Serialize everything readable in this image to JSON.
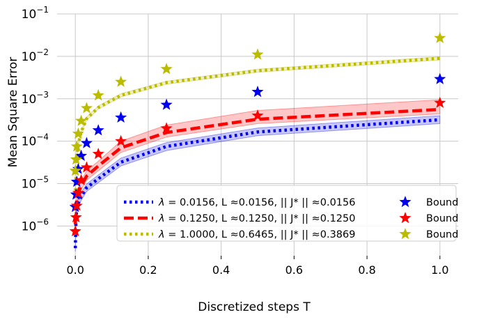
{
  "chart_data": {
    "type": "line",
    "yscale": "log",
    "xlabel": "Discretized steps T",
    "ylabel": "Mean Square Error",
    "xlim": [
      -0.05,
      1.05
    ],
    "ylim_exp": [
      -6.7,
      -1
    ],
    "x_ticks": [
      0.0,
      0.2,
      0.4,
      0.6,
      0.8,
      1.0
    ],
    "x_tick_labels": [
      "0.0",
      "0.2",
      "0.4",
      "0.6",
      "0.8",
      "1.0"
    ],
    "y_ticks_exp": [
      -6,
      -5,
      -4,
      -3,
      -2,
      -1
    ],
    "y_tick_base": "10",
    "y_tick_exponents": [
      "−6",
      "−5",
      "−4",
      "−3",
      "−2",
      "−1"
    ],
    "grid": true,
    "legend_position": "lower-right",
    "x": [
      0.0,
      0.002,
      0.004,
      0.008,
      0.016,
      0.031,
      0.063,
      0.125,
      0.25,
      0.5,
      1.0
    ],
    "series": [
      {
        "name": "λ = 0.0156",
        "legend_lambda": "λ",
        "legend_text": " =  0.0156, L ≈0.0156, || J* || ≈0.0156",
        "color": "#0000ee",
        "dash": "dotted",
        "curve": [
          3e-07,
          1.6e-06,
          2.5e-06,
          3.5e-06,
          5e-06,
          8e-06,
          1.3e-05,
          3.2e-05,
          7.5e-05,
          0.000165,
          0.00032
        ],
        "band_low": [
          2.5e-07,
          1.3e-06,
          2e-06,
          2.8e-06,
          4e-06,
          6.5e-06,
          1.05e-05,
          2.6e-05,
          6e-05,
          0.000135,
          0.00026
        ],
        "band_high": [
          3.6e-07,
          1.95e-06,
          3e-06,
          4.3e-06,
          6.1e-06,
          9.8e-06,
          1.6e-05,
          4e-05,
          9.3e-05,
          0.000205,
          0.0004
        ],
        "bound_label": "Bound",
        "bound": [
          2.8e-06,
          5.5e-06,
          1.1e-05,
          2.2e-05,
          4.5e-05,
          9e-05,
          0.00018,
          0.00036,
          0.00072,
          0.00145,
          0.0029
        ]
      },
      {
        "name": "λ = 0.1250",
        "legend_lambda": "λ",
        "legend_text": " =  0.1250, L ≈0.1250, || J* || ≈0.1250",
        "color": "#ff0000",
        "dash": "dashed",
        "curve": [
          1.1e-06,
          2.8e-06,
          4e-06,
          6e-06,
          9e-06,
          1.5e-05,
          2.6e-05,
          7e-05,
          0.00016,
          0.00033,
          0.00056
        ],
        "band_low": [
          9e-07,
          2.2e-06,
          3.2e-06,
          4.8e-06,
          7.2e-06,
          1.2e-05,
          2e-05,
          5.4e-05,
          0.000125,
          0.00026,
          0.00044
        ],
        "band_high": [
          1.4e-06,
          3.6e-06,
          5.2e-06,
          7.8e-06,
          1.2e-05,
          2e-05,
          3.4e-05,
          0.0001,
          0.00024,
          0.00053,
          0.00095
        ],
        "bound_label": "Bound",
        "bound": [
          7.5e-07,
          1.6e-06,
          3e-06,
          6e-06,
          1.2e-05,
          2.4e-05,
          5e-05,
          0.0001,
          0.0002,
          0.0004,
          0.0008
        ]
      },
      {
        "name": "λ = 1.0000",
        "legend_lambda": "λ",
        "legend_text": " =  1.0000, L ≈0.6465, || J* || ≈0.3869",
        "color": "#bbbb00",
        "dash": "dotted",
        "curve": [
          5e-06,
          2.2e-05,
          4.5e-05,
          8.5e-05,
          0.000165,
          0.00034,
          0.00062,
          0.0012,
          0.0024,
          0.0046,
          0.009
        ],
        "band_low": [
          4.6e-06,
          2e-05,
          4.1e-05,
          7.8e-05,
          0.00015,
          0.00031,
          0.00057,
          0.0011,
          0.0022,
          0.0042,
          0.0082
        ],
        "band_high": [
          5.5e-06,
          2.4e-05,
          4.9e-05,
          9.3e-05,
          0.00018,
          0.00037,
          0.00068,
          0.00132,
          0.0026,
          0.005,
          0.0098
        ],
        "bound_label": "Bound",
        "bound": [
          2e-05,
          3.7e-05,
          7.5e-05,
          0.00015,
          0.0003,
          0.0006,
          0.0012,
          0.0025,
          0.005,
          0.011,
          0.027
        ]
      }
    ]
  }
}
